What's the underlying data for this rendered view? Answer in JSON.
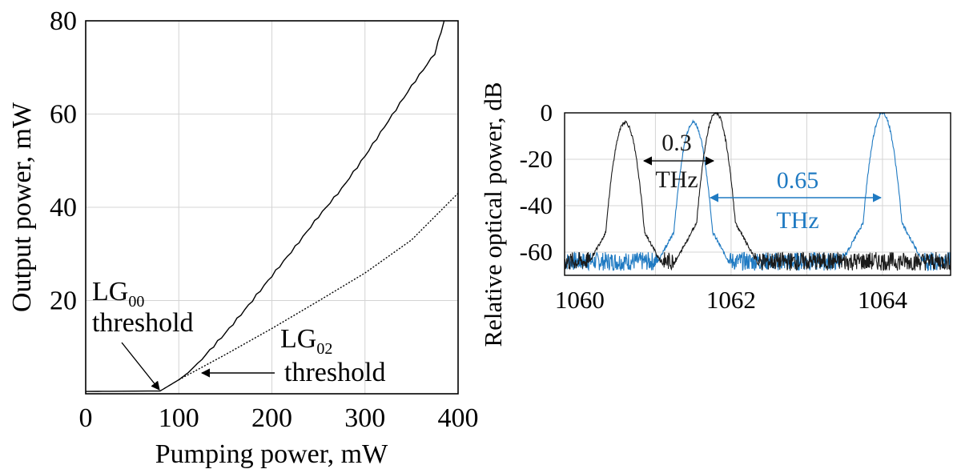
{
  "chart_data": [
    {
      "type": "line",
      "title": "",
      "xlabel": "Pumping power, mW",
      "ylabel": "Output power, mW",
      "xlim": [
        0,
        400
      ],
      "ylim": [
        0,
        80
      ],
      "xticks": [
        "0",
        "100",
        "200",
        "300",
        "400"
      ],
      "yticks": [
        "20",
        "40",
        "60",
        "80"
      ],
      "grid": true,
      "series": [
        {
          "style": "solid",
          "color": "#000000",
          "x": [
            0,
            80,
            90,
            100,
            110,
            125,
            150,
            175,
            200,
            225,
            250,
            275,
            300,
            325,
            350,
            375,
            385
          ],
          "y": [
            0.5,
            0.6,
            1.8,
            3.0,
            4.5,
            7.5,
            13.0,
            19.0,
            25.3,
            31.5,
            38.0,
            44.0,
            51.0,
            58.5,
            66.0,
            73.0,
            80.0
          ]
        },
        {
          "style": "dotted",
          "color": "#000000",
          "x": [
            100,
            150,
            200,
            250,
            300,
            350,
            400
          ],
          "y": [
            3.0,
            8.4,
            14.0,
            19.9,
            25.9,
            33.0,
            43.0
          ]
        }
      ],
      "annotations": [
        {
          "base": "LG",
          "sub": "00",
          "line2": "threshold",
          "arrow_to": [
            80,
            0.6
          ]
        },
        {
          "base": "LG",
          "sub": "02",
          "line2": "threshold",
          "arrow_to": [
            108,
            4.5
          ]
        }
      ]
    },
    {
      "type": "line",
      "title": "",
      "xlabel": "",
      "ylabel": "Relative optical power, dB",
      "xlim": [
        1059.8,
        1064.9
      ],
      "ylim": [
        -70,
        0
      ],
      "xticks": [
        "1060",
        "1062",
        "1064"
      ],
      "yticks": [
        "0",
        "-20",
        "-40",
        "-60"
      ],
      "grid": true,
      "series": [
        {
          "color": "#1a1a1a",
          "peaks": [
            {
              "x": 1060.6,
              "y": -4
            },
            {
              "x": 1061.8,
              "y": 0
            }
          ],
          "noise_floor": -64
        },
        {
          "color": "#1f7ac2",
          "peaks": [
            {
              "x": 1061.5,
              "y": -4
            },
            {
              "x": 1064.0,
              "y": 0
            }
          ],
          "noise_floor": -64
        }
      ],
      "annotations": [
        {
          "text1": "0.3",
          "text2": "THz",
          "color": "#1a1a1a",
          "from": 1060.6,
          "to": 1061.8
        },
        {
          "text1": "0.65",
          "text2": "THz",
          "color": "#1f7ac2",
          "from": 1061.5,
          "to": 1064.0
        }
      ]
    }
  ]
}
